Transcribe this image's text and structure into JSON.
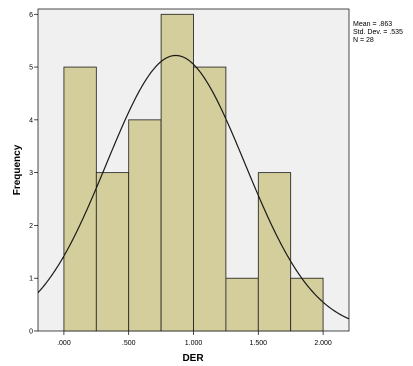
{
  "chart_data": {
    "type": "bar",
    "subtype": "histogram",
    "xlabel": "DER",
    "ylabel": "Frequency",
    "x_ticks": [
      ".000",
      ".500",
      "1.000",
      "1.500",
      "2.000"
    ],
    "x_tick_values": [
      0.0,
      0.5,
      1.0,
      1.5,
      2.0
    ],
    "y_ticks": [
      "0",
      "1",
      "2",
      "3",
      "4",
      "5",
      "6"
    ],
    "y_tick_values": [
      0,
      1,
      2,
      3,
      4,
      5,
      6
    ],
    "xlim": [
      -0.2,
      2.2
    ],
    "ylim": [
      0,
      6.1
    ],
    "bin_edges": [
      0.0,
      0.25,
      0.5,
      0.75,
      1.0,
      1.25,
      1.5,
      1.75,
      2.0
    ],
    "values": [
      5,
      3,
      4,
      6,
      5,
      1,
      3,
      1
    ],
    "normal_curve": {
      "mean": 0.863,
      "sd": 0.535,
      "n": 28,
      "bin_width": 0.25
    },
    "bar_color": "#d4ce9c",
    "plot_background": "#f0f0f0",
    "grid": false
  },
  "stats": {
    "mean": "Mean = .863",
    "std": "Std. Dev. = .535",
    "n": "N = 28"
  }
}
